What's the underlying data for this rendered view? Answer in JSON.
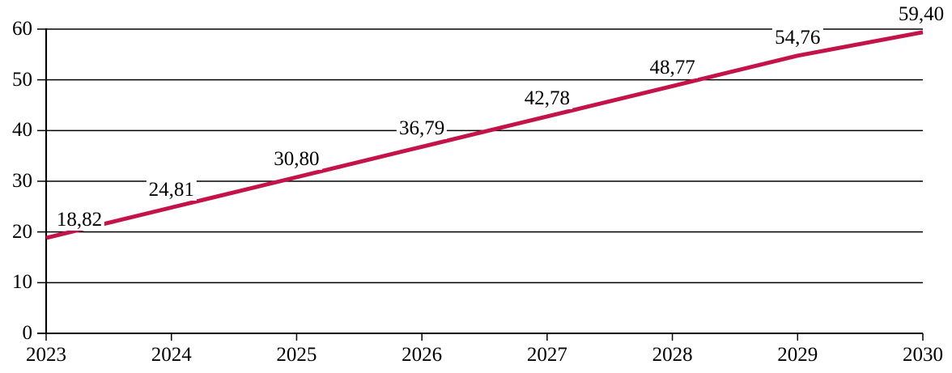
{
  "chart_data": {
    "type": "line",
    "x": [
      2023,
      2024,
      2025,
      2026,
      2027,
      2028,
      2029,
      2030
    ],
    "x_tick_labels": [
      "2023",
      "2024",
      "2025",
      "2026",
      "2027",
      "2028",
      "2029",
      "2030"
    ],
    "values": [
      18.82,
      24.81,
      30.8,
      36.79,
      42.78,
      48.77,
      54.76,
      59.4
    ],
    "point_labels": [
      "18,82",
      "24,81",
      "30,80",
      "36,79",
      "42,78",
      "48,77",
      "54,76",
      "59,40"
    ],
    "y_ticks": [
      0,
      10,
      20,
      30,
      40,
      50,
      60
    ],
    "y_tick_labels": [
      "0",
      "10",
      "20",
      "30",
      "40",
      "50",
      "60"
    ],
    "ylim": [
      0,
      60
    ],
    "title": "",
    "xlabel": "",
    "ylabel": "",
    "grid": "horizontal",
    "legend": "none",
    "colors": {
      "line": "#C31349",
      "gridline": "#000000",
      "axis": "#000000",
      "text": "#000000",
      "background": "#FFFFFF"
    }
  }
}
